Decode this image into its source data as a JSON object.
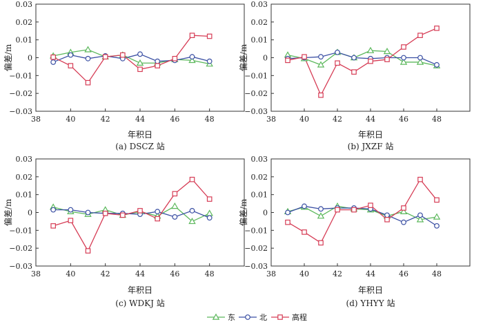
{
  "chart_data": [
    {
      "type": "line",
      "caption": "(a) DSCZ 站",
      "xlabel": "年积日",
      "ylabel": "偏差/m",
      "xlim": [
        38,
        50
      ],
      "ylim": [
        -0.03,
        0.03
      ],
      "xticks": [
        38,
        40,
        42,
        44,
        46,
        48
      ],
      "yticks": [
        -0.03,
        -0.02,
        -0.01,
        0,
        0.01,
        0.02,
        0.03
      ],
      "ytick_labels": [
        "−0.03",
        "−0.02",
        "−0.01",
        "0",
        "0.01",
        "0.02",
        "0.03"
      ],
      "x": [
        39,
        40,
        41,
        42,
        43,
        44,
        45,
        46,
        47,
        48
      ],
      "series": [
        {
          "name": "东",
          "values": [
            0.001,
            0.003,
            0.0045,
            0.0005,
            0.0015,
            -0.003,
            -0.003,
            -0.001,
            -0.0015,
            -0.0035
          ]
        },
        {
          "name": "北",
          "values": [
            -0.0025,
            0.0015,
            -0.0005,
            0.001,
            -0.0005,
            0.002,
            -0.002,
            -0.0015,
            0.0005,
            -0.002
          ]
        },
        {
          "name": "高程",
          "values": null
        }
      ],
      "series_height": [
        0.0003,
        -0.0045,
        -0.014,
        0.0005,
        0.0015,
        -0.0065,
        -0.0045,
        -0.0005,
        0.0125,
        0.012
      ]
    },
    {
      "type": "line",
      "caption": "(b) JXZF 站",
      "xlabel": "年积日",
      "ylabel": "偏差/m",
      "xlim": [
        38,
        50
      ],
      "ylim": [
        -0.03,
        0.03
      ],
      "xticks": [
        38,
        40,
        42,
        44,
        46,
        48
      ],
      "yticks": [
        -0.03,
        -0.02,
        -0.01,
        0,
        0.01,
        0.02,
        0.03
      ],
      "ytick_labels": [
        "−0.03",
        "−0.02",
        "−0.01",
        "0",
        "0.01",
        "0.02",
        "0.03"
      ],
      "x": [
        39,
        40,
        41,
        42,
        43,
        44,
        45,
        46,
        47,
        48
      ],
      "series": [
        {
          "name": "东",
          "values": [
            0.0015,
            -0.0005,
            -0.004,
            0.003,
            0.0,
            0.004,
            0.0035,
            -0.0025,
            -0.0025,
            -0.0045
          ]
        },
        {
          "name": "北",
          "values": [
            -0.0005,
            0.0,
            0.0005,
            0.003,
            0.0,
            -0.0005,
            0.0,
            0.0,
            0.0,
            -0.004
          ]
        },
        {
          "name": "高程",
          "values": null
        }
      ],
      "series_height": [
        -0.0015,
        0.0005,
        -0.021,
        -0.003,
        -0.008,
        -0.002,
        -0.001,
        0.006,
        0.0125,
        0.0165
      ]
    },
    {
      "type": "line",
      "caption": "(c) WDKJ 站",
      "xlabel": "年积日",
      "ylabel": "偏差/m",
      "xlim": [
        38,
        50
      ],
      "ylim": [
        -0.03,
        0.03
      ],
      "xticks": [
        38,
        40,
        42,
        44,
        46,
        48
      ],
      "yticks": [
        -0.03,
        -0.02,
        -0.01,
        0,
        0.01,
        0.02,
        0.03
      ],
      "ytick_labels": [
        "−0.03",
        "−0.02",
        "−0.01",
        "0",
        "0.01",
        "0.02",
        "0.03"
      ],
      "x": [
        39,
        40,
        41,
        42,
        43,
        44,
        45,
        46,
        47,
        48
      ],
      "series": [
        {
          "name": "东",
          "values": [
            0.003,
            0.0005,
            -0.001,
            0.0015,
            -0.0015,
            0.0005,
            -0.002,
            0.0035,
            -0.005,
            -0.0005
          ]
        },
        {
          "name": "北",
          "values": [
            0.0015,
            0.0015,
            0.0,
            -0.0005,
            -0.0005,
            -0.001,
            0.0005,
            -0.0025,
            0.001,
            -0.003
          ]
        },
        {
          "name": "高程",
          "values": null
        }
      ],
      "series_height": [
        -0.0075,
        -0.0045,
        -0.0215,
        -0.0005,
        -0.0015,
        0.001,
        -0.0035,
        0.0105,
        0.0185,
        0.0075
      ]
    },
    {
      "type": "line",
      "caption": "(d) YHYY 站",
      "xlabel": "年积日",
      "ylabel": "偏差/m",
      "xlim": [
        38,
        50
      ],
      "ylim": [
        -0.03,
        0.03
      ],
      "xticks": [
        38,
        40,
        42,
        44,
        46,
        48
      ],
      "yticks": [
        -0.03,
        -0.02,
        -0.01,
        0,
        0.01,
        0.02,
        0.03
      ],
      "ytick_labels": [
        "−0.03",
        "−0.02",
        "−0.01",
        "0",
        "0.01",
        "0.02",
        "0.03"
      ],
      "x": [
        39,
        40,
        41,
        42,
        43,
        44,
        45,
        46,
        47,
        48
      ],
      "series": [
        {
          "name": "东",
          "values": [
            0.0005,
            0.003,
            -0.002,
            0.0035,
            0.002,
            0.0015,
            -0.002,
            0.0005,
            -0.004,
            -0.0025
          ]
        },
        {
          "name": "北",
          "values": [
            0.0,
            0.0035,
            0.002,
            0.0025,
            0.0025,
            0.002,
            -0.0015,
            -0.0055,
            -0.0015,
            -0.0075
          ]
        },
        {
          "name": "高程",
          "values": null
        }
      ],
      "series_height": [
        -0.0055,
        -0.011,
        -0.017,
        0.0015,
        0.0015,
        0.004,
        -0.004,
        0.0025,
        0.0185,
        0.007
      ]
    }
  ],
  "legend": {
    "items": [
      {
        "name": "东",
        "color": "#5cb85c",
        "marker": "triangle"
      },
      {
        "name": "北",
        "color": "#3a4fa3",
        "marker": "circle"
      },
      {
        "name": "高程",
        "color": "#d63c55",
        "marker": "square"
      }
    ]
  },
  "colors": {
    "east": "#5cb85c",
    "north": "#3a4fa3",
    "height": "#d63c55",
    "axis": "#333333"
  }
}
